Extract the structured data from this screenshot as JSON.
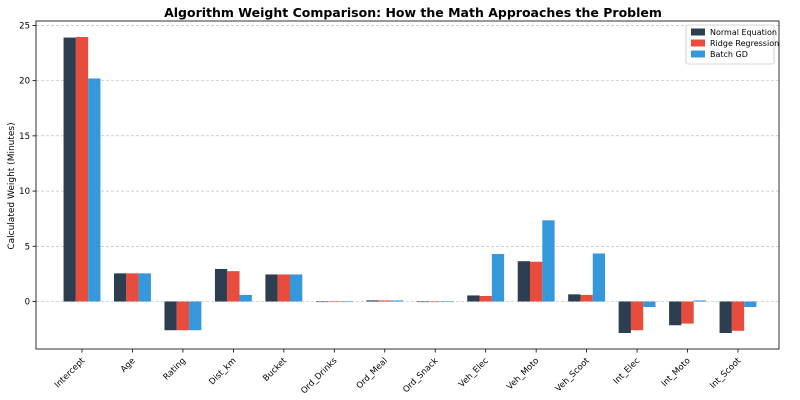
{
  "chart_data": {
    "type": "bar",
    "title": "Algorithm Weight Comparison: How the Math Approaches the Problem",
    "xlabel": "",
    "ylabel": "Calculated Weight (Minutes)",
    "ylim": [
      -4.3,
      25.4
    ],
    "yticks": [
      0,
      5,
      10,
      15,
      20,
      25
    ],
    "grid": "horizontal-dashed",
    "legend_position": "top-right",
    "categories": [
      "Intercept",
      "Age",
      "Rating",
      "Dist_km",
      "Bucket",
      "Ord_Drinks",
      "Ord_Meal",
      "Ord_Snack",
      "Veh_Elec",
      "Veh_Moto",
      "Veh_Scoot",
      "Int_Elec",
      "Int_Moto",
      "Int_Scoot"
    ],
    "series": [
      {
        "name": "Normal Equation",
        "color": "#2c3e50",
        "values": [
          23.9,
          2.55,
          -2.6,
          2.95,
          2.45,
          -0.05,
          0.1,
          0.0,
          0.55,
          3.65,
          0.65,
          -2.85,
          -2.15,
          -2.85
        ]
      },
      {
        "name": "Ridge Regression",
        "color": "#e74c3c",
        "values": [
          23.95,
          2.55,
          -2.6,
          2.75,
          2.45,
          -0.05,
          0.1,
          0.0,
          0.5,
          3.6,
          0.6,
          -2.6,
          -2.0,
          -2.65
        ]
      },
      {
        "name": "Batch GD",
        "color": "#3498db",
        "values": [
          20.2,
          2.55,
          -2.6,
          0.6,
          2.45,
          -0.05,
          0.1,
          0.0,
          4.3,
          7.35,
          4.35,
          -0.5,
          0.1,
          -0.5
        ]
      }
    ]
  }
}
